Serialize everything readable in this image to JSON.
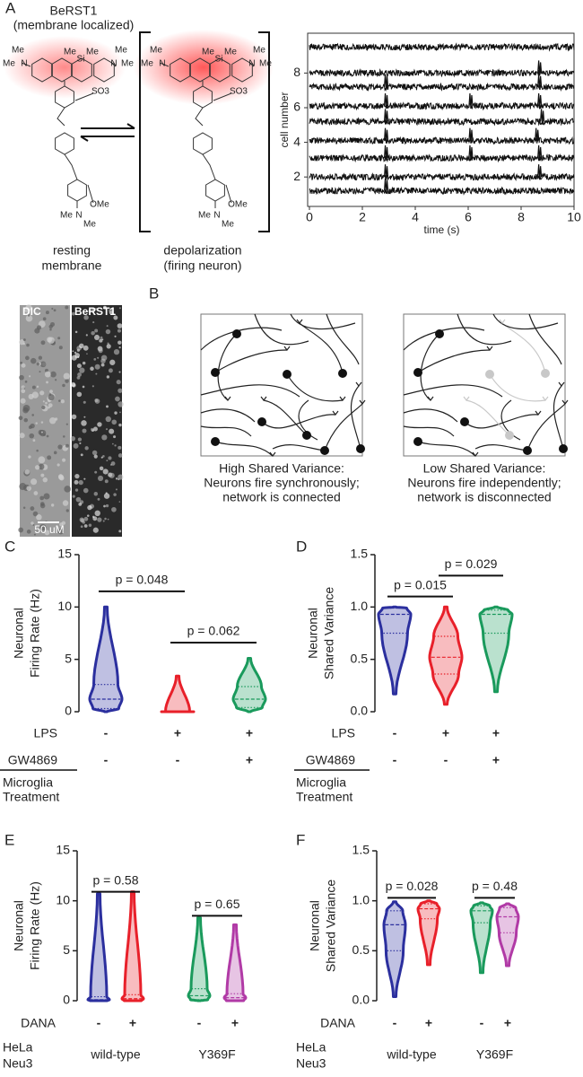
{
  "panel_a": {
    "label": "A",
    "title": [
      "BeRST1",
      "(membrane localized)"
    ],
    "resting_labels": [
      "Me",
      "Me",
      "N",
      "Me",
      "Si",
      "Me",
      "N",
      "Me",
      "Me",
      "SO3",
      "OMe",
      "Me",
      "N",
      "Me"
    ],
    "depolarized_labels": [
      "Me",
      "Me",
      "N",
      "Me",
      "Si",
      "Me",
      "N",
      "Me",
      "Me",
      "SO3",
      "OMe",
      "Me",
      "N",
      "Me"
    ],
    "resting_caption": [
      "resting",
      "membrane"
    ],
    "depolarized_caption": [
      "depolarization",
      "(firing neuron)"
    ],
    "images": [
      "DIC",
      "BeRST1"
    ],
    "scale_bar": "50 uM"
  },
  "panel_b": {
    "label": "B",
    "connected_caption": [
      "High Shared Variance:",
      "Neurons fire synchronously;",
      "network is connected"
    ],
    "disconnected_caption": [
      "Low Shared Variance:",
      "Neurons fire independently;",
      "network is disconnected"
    ]
  },
  "chart_data": [
    {
      "type": "traces",
      "xlabel": "time (s)",
      "ylabel": "cell number",
      "xlim": [
        0,
        10
      ],
      "xticks": [
        0,
        2,
        4,
        6,
        8,
        10
      ],
      "ylim": [
        0.3,
        10.3
      ],
      "yticks": [
        2,
        4,
        6,
        8
      ],
      "color": "#111111",
      "traces": [
        {
          "baseline": 1.2,
          "spike_times": [
            2.9
          ]
        },
        {
          "baseline": 2.0,
          "spike_times": [
            2.9,
            8.7
          ]
        },
        {
          "baseline": 3.1,
          "spike_times": [
            2.9,
            6.1,
            8.7
          ]
        },
        {
          "baseline": 4.1,
          "spike_times": [
            2.9,
            6.1,
            8.6
          ]
        },
        {
          "baseline": 5.2,
          "spike_times": [
            2.9,
            8.8
          ]
        },
        {
          "baseline": 6.1,
          "spike_times": [
            2.9,
            6.1,
            8.7
          ]
        },
        {
          "baseline": 7.2,
          "spike_times": [
            2.9,
            8.7
          ]
        },
        {
          "baseline": 8.0,
          "spike_times": [
            8.7
          ]
        },
        {
          "baseline": 9.5,
          "spike_times": []
        }
      ]
    },
    {
      "type": "violin",
      "panel": "C",
      "ylabel": [
        "Neuronal",
        "Firing Rate (Hz)"
      ],
      "ylim": [
        0,
        15
      ],
      "yticks": [
        0,
        5,
        10,
        15
      ],
      "rows": [
        {
          "label": "LPS",
          "values": [
            "-",
            "+",
            "+"
          ]
        },
        {
          "label": "GW4869",
          "values": [
            "-",
            "-",
            "+"
          ]
        }
      ],
      "group_label": [
        "Microglia",
        "Treatment"
      ],
      "series": [
        {
          "color": "#2b2f9e",
          "min": 0,
          "q1": 0.3,
          "median": 1.2,
          "q3": 2.6,
          "max": 10
        },
        {
          "color": "#e8202a",
          "min": 0,
          "q1": 0,
          "median": 0,
          "q3": 0,
          "max": 3.4
        },
        {
          "color": "#1a9a5c",
          "min": 0,
          "q1": 0.4,
          "median": 1.2,
          "q3": 2.4,
          "max": 5.1
        }
      ],
      "annotations": [
        {
          "text": "p = 0.048",
          "from": 0,
          "to": 1,
          "y": 11.5
        },
        {
          "text": "p = 0.062",
          "from": 1,
          "to": 2,
          "y": 6.6
        }
      ]
    },
    {
      "type": "violin",
      "panel": "D",
      "ylabel": [
        "Neuronal",
        "Shared Variance"
      ],
      "ylim": [
        0,
        1.5
      ],
      "yticks": [
        {
          "value": 0,
          "label": "0.0"
        },
        {
          "value": 0.5,
          "label": "0.5"
        },
        {
          "value": 1,
          "label": "1.0"
        },
        {
          "value": 1.5,
          "label": "1.5"
        }
      ],
      "rows": [
        {
          "label": "LPS",
          "values": [
            "-",
            "+",
            "+"
          ]
        },
        {
          "label": "GW4869",
          "values": [
            "-",
            "-",
            "+"
          ]
        }
      ],
      "group_label": [
        "Microglia",
        "Treatment"
      ],
      "series": [
        {
          "color": "#2b2f9e",
          "min": 0.17,
          "q1": 0.75,
          "median": 0.93,
          "q3": 0.99,
          "max": 1.0
        },
        {
          "color": "#e8202a",
          "min": 0.07,
          "q1": 0.36,
          "median": 0.52,
          "q3": 0.72,
          "max": 1.0
        },
        {
          "color": "#1a9a5c",
          "min": 0.19,
          "q1": 0.75,
          "median": 0.93,
          "q3": 0.97,
          "max": 1.0
        }
      ],
      "annotations": [
        {
          "text": "p = 0.015",
          "from": 0,
          "to": 1,
          "y": 1.1
        },
        {
          "text": "p = 0.029",
          "from": 1,
          "to": 2,
          "y": 1.3
        }
      ]
    },
    {
      "type": "violin",
      "panel": "E",
      "ylabel": [
        "Neuronal",
        "Firing Rate (Hz)"
      ],
      "ylim": [
        0,
        15
      ],
      "yticks": [
        0,
        5,
        10,
        15
      ],
      "rows": [
        {
          "label": "DANA",
          "values": [
            "-",
            "+",
            "-",
            "+"
          ]
        }
      ],
      "groups": [
        "wild-type",
        "Y369F"
      ],
      "group_label": [
        "HeLa",
        "Neu3"
      ],
      "series": [
        {
          "color": "#2b2f9e",
          "min": 0,
          "q1": 0,
          "median": 0.1,
          "q3": 0.4,
          "max": 10.7
        },
        {
          "color": "#e8202a",
          "min": 0,
          "q1": 0,
          "median": 0.2,
          "q3": 0.6,
          "max": 10.9
        },
        {
          "color": "#1a9a5c",
          "min": 0,
          "q1": 0.1,
          "median": 0.5,
          "q3": 1.2,
          "max": 8.3
        },
        {
          "color": "#b13aa6",
          "min": 0,
          "q1": 0,
          "median": 0.3,
          "q3": 0.7,
          "max": 7.6
        }
      ],
      "annotations": [
        {
          "text": "p = 0.58",
          "from": 0,
          "to": 1,
          "y": 10.9
        },
        {
          "text": "p = 0.65",
          "from": 2,
          "to": 3,
          "y": 8.5
        }
      ]
    },
    {
      "type": "violin",
      "panel": "F",
      "ylabel": [
        "Neuronal",
        "Shared Variance"
      ],
      "ylim": [
        0,
        1.5
      ],
      "yticks": [
        {
          "value": 0,
          "label": "0.0"
        },
        {
          "value": 0.5,
          "label": "0.5"
        },
        {
          "value": 1,
          "label": "1.0"
        },
        {
          "value": 1.5,
          "label": "1.5"
        }
      ],
      "rows": [
        {
          "label": "DANA",
          "values": [
            "-",
            "+",
            "-",
            "+"
          ]
        }
      ],
      "groups": [
        "wild-type",
        "Y369F"
      ],
      "group_label": [
        "HeLa",
        "Neu3"
      ],
      "series": [
        {
          "color": "#2b2f9e",
          "min": 0.04,
          "q1": 0.5,
          "median": 0.76,
          "q3": 0.9,
          "max": 0.99
        },
        {
          "color": "#e8202a",
          "min": 0.36,
          "q1": 0.82,
          "median": 0.92,
          "q3": 0.97,
          "max": 1.0
        },
        {
          "color": "#1a9a5c",
          "min": 0.28,
          "q1": 0.78,
          "median": 0.9,
          "q3": 0.95,
          "max": 0.98
        },
        {
          "color": "#b13aa6",
          "min": 0.35,
          "q1": 0.68,
          "median": 0.84,
          "q3": 0.93,
          "max": 0.97
        }
      ],
      "annotations": [
        {
          "text": "p = 0.028",
          "from": 0,
          "to": 1,
          "y": 1.03
        },
        {
          "text": "p = 0.48",
          "from": 2,
          "to": 3,
          "y": 1.03
        }
      ]
    }
  ]
}
